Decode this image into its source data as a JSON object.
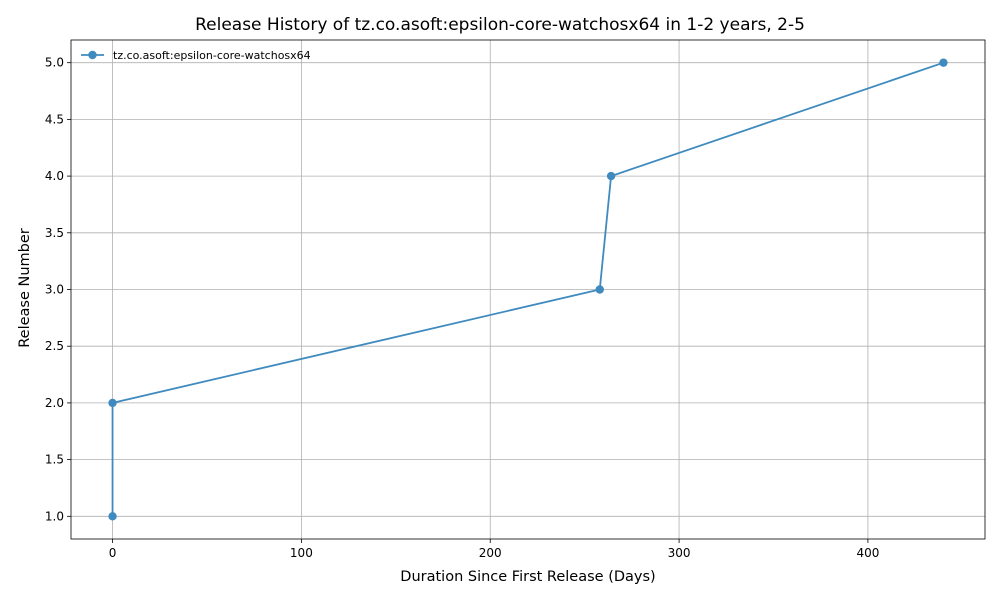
{
  "chart_data": {
    "type": "line",
    "title": "Release History of tz.co.asoft:epsilon-core-watchosx64 in 1-2 years, 2-5",
    "xlabel": "Duration Since First Release (Days)",
    "ylabel": "Release Number",
    "xlim": [
      -22,
      462
    ],
    "ylim": [
      0.8,
      5.2
    ],
    "xticks": [
      0,
      100,
      200,
      300,
      400
    ],
    "xtick_labels": [
      "0",
      "100",
      "200",
      "300",
      "400"
    ],
    "yticks": [
      1.0,
      1.5,
      2.0,
      2.5,
      3.0,
      3.5,
      4.0,
      4.5,
      5.0
    ],
    "ytick_labels": [
      "1.0",
      "1.5",
      "2.0",
      "2.5",
      "3.0",
      "3.5",
      "4.0",
      "4.5",
      "5.0"
    ],
    "grid": true,
    "legend_position": "top-left",
    "series": [
      {
        "name": "tz.co.asoft:epsilon-core-watchosx64",
        "color": "#3f8bbf",
        "marker": "circle",
        "x": [
          0,
          0,
          258,
          264,
          440
        ],
        "y": [
          1,
          2,
          3,
          4,
          5
        ]
      }
    ]
  }
}
